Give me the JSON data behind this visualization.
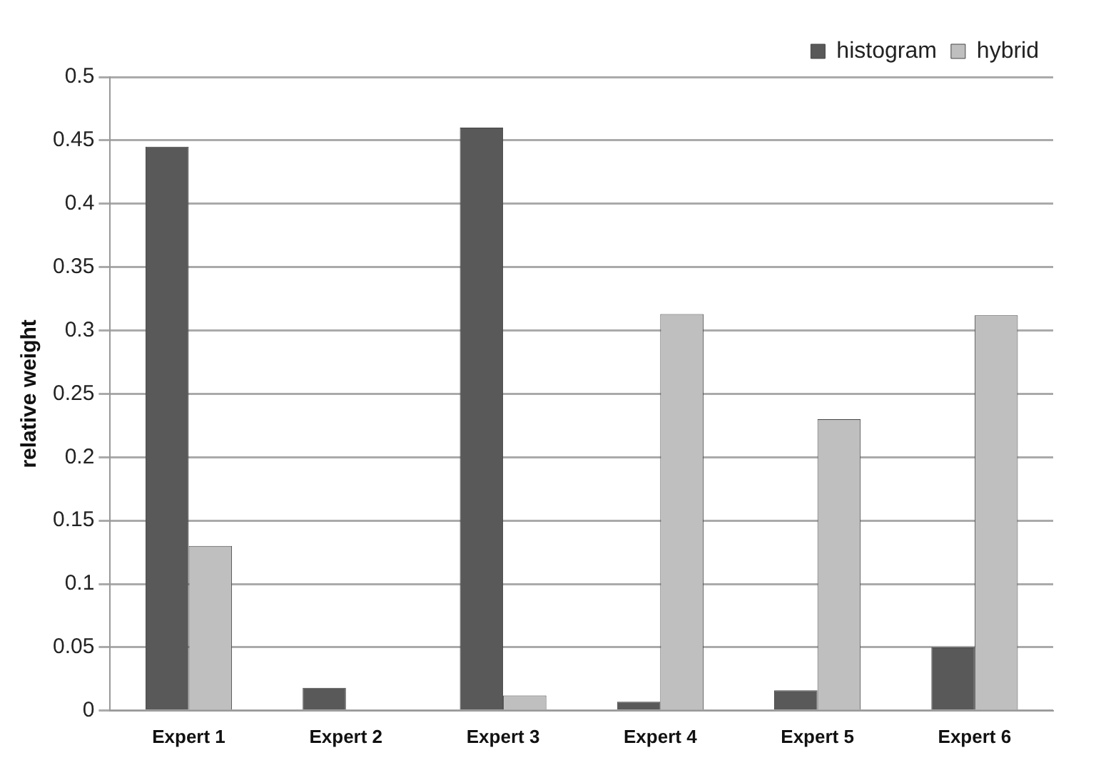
{
  "chart_data": {
    "type": "bar",
    "ylabel": "relative weight",
    "categories": [
      "Expert 1",
      "Expert 2",
      "Expert 3",
      "Expert 4",
      "Expert 5",
      "Expert 6"
    ],
    "series": [
      {
        "name": "histogram",
        "color": "#595959",
        "values": [
          0.445,
          0.018,
          0.46,
          0.007,
          0.016,
          0.05
        ]
      },
      {
        "name": "hybrid",
        "color": "#bfbfbf",
        "values": [
          0.13,
          0,
          0.012,
          0.313,
          0.23,
          0.312
        ]
      }
    ],
    "ylim": [
      0,
      0.5
    ],
    "yticks": [
      0,
      0.05,
      0.1,
      0.15,
      0.2,
      0.25,
      0.3,
      0.35,
      0.4,
      0.45,
      0.5
    ],
    "grid": "y",
    "legend": "top right"
  }
}
